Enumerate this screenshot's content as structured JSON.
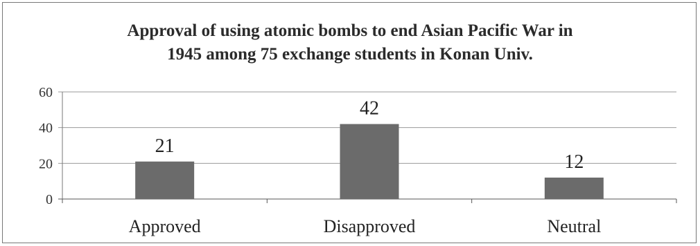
{
  "chart_data": {
    "type": "bar",
    "title_lines": [
      "Approval of using atomic bombs to end Asian Pacific War in",
      "1945 among 75 exchange students in Konan Univ."
    ],
    "categories": [
      "Approved",
      "Disapproved",
      "Neutral"
    ],
    "values": [
      21,
      42,
      12
    ],
    "data_labels": [
      "21",
      "42",
      "12"
    ],
    "ylim": [
      0,
      60
    ],
    "yticks": [
      0,
      20,
      40,
      60
    ],
    "ytick_labels": [
      "0",
      "20",
      "40",
      "60"
    ],
    "grid": true,
    "legend": "none",
    "bar_color": "#6b6b6b",
    "grid_color": "#9a9a9a"
  }
}
